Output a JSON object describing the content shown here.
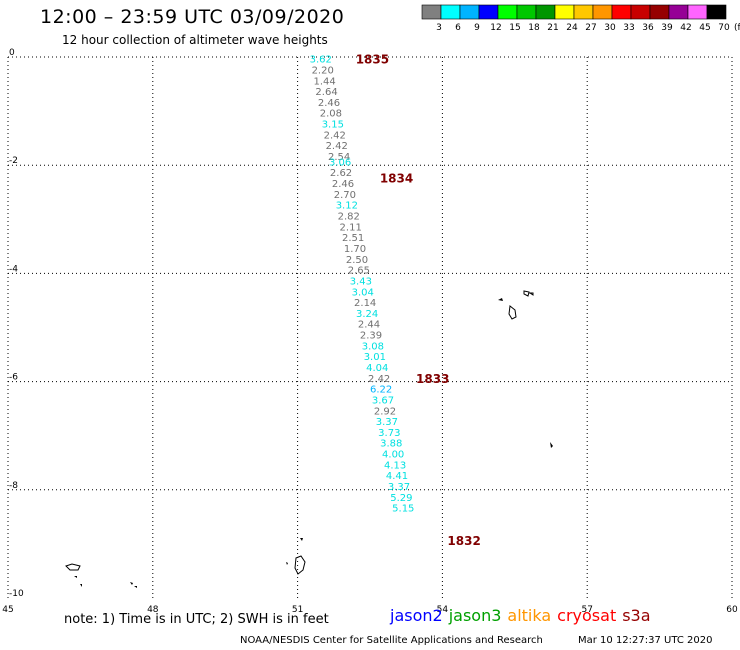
{
  "header": {
    "title": "12:00 – 23:59 UTC 03/09/2020",
    "subtitle": "12 hour collection of altimeter wave heights"
  },
  "legend": {
    "colors": [
      "#808080",
      "#00ffff",
      "#00b4ff",
      "#0000ff",
      "#00ff00",
      "#00c800",
      "#009600",
      "#ffff00",
      "#ffc800",
      "#ff9600",
      "#ff0000",
      "#c80000",
      "#960000",
      "#960096",
      "#ff64ff",
      "#000000"
    ],
    "labels": [
      "3",
      "6",
      "9",
      "12",
      "15",
      "18",
      "21",
      "24",
      "27",
      "30",
      "33",
      "36",
      "39",
      "42",
      "45",
      "70"
    ],
    "unit": "(ft)"
  },
  "axes": {
    "lon_ticks": [
      "45",
      "48",
      "51",
      "54",
      "57",
      "60"
    ],
    "lat_ticks": [
      "0",
      "-2",
      "-4",
      "-6",
      "-8",
      "-10"
    ],
    "lon_range": [
      45,
      60
    ],
    "lat_range": [
      -10,
      0
    ],
    "grid": true
  },
  "track": {
    "points": [
      {
        "lon": 51.48,
        "lat": -0.03,
        "v": "3.62",
        "c": "#00e0e0"
      },
      {
        "lon": 51.52,
        "lat": -0.23,
        "v": "2.20",
        "c": "#707070"
      },
      {
        "lon": 51.56,
        "lat": -0.43,
        "v": "1.44",
        "c": "#707070"
      },
      {
        "lon": 51.6,
        "lat": -0.63,
        "v": "2.64",
        "c": "#707070"
      },
      {
        "lon": 51.65,
        "lat": -0.83,
        "v": "2.46",
        "c": "#707070"
      },
      {
        "lon": 51.69,
        "lat": -1.03,
        "v": "2.08",
        "c": "#707070"
      },
      {
        "lon": 51.73,
        "lat": -1.23,
        "v": "3.15",
        "c": "#00e0e0"
      },
      {
        "lon": 51.77,
        "lat": -1.43,
        "v": "2.42",
        "c": "#707070"
      },
      {
        "lon": 51.81,
        "lat": -1.63,
        "v": "2.42",
        "c": "#707070"
      },
      {
        "lon": 51.86,
        "lat": -1.83,
        "v": "2.54",
        "c": "#707070"
      },
      {
        "lon": 51.88,
        "lat": -1.93,
        "v": "3.06",
        "c": "#00e0e0"
      },
      {
        "lon": 51.9,
        "lat": -2.13,
        "v": "2.62",
        "c": "#707070"
      },
      {
        "lon": 51.94,
        "lat": -2.33,
        "v": "2.46",
        "c": "#707070"
      },
      {
        "lon": 51.98,
        "lat": -2.53,
        "v": "2.70",
        "c": "#707070"
      },
      {
        "lon": 52.02,
        "lat": -2.73,
        "v": "3.12",
        "c": "#00e0e0"
      },
      {
        "lon": 52.06,
        "lat": -2.93,
        "v": "2.82",
        "c": "#707070"
      },
      {
        "lon": 52.1,
        "lat": -3.13,
        "v": "2.11",
        "c": "#707070"
      },
      {
        "lon": 52.15,
        "lat": -3.33,
        "v": "2.51",
        "c": "#707070"
      },
      {
        "lon": 52.19,
        "lat": -3.53,
        "v": "1.70",
        "c": "#707070"
      },
      {
        "lon": 52.23,
        "lat": -3.73,
        "v": "2.50",
        "c": "#707070"
      },
      {
        "lon": 52.27,
        "lat": -3.93,
        "v": "2.65",
        "c": "#707070"
      },
      {
        "lon": 52.31,
        "lat": -4.13,
        "v": "3.43",
        "c": "#00e0e0"
      },
      {
        "lon": 52.35,
        "lat": -4.33,
        "v": "3.04",
        "c": "#00e0e0"
      },
      {
        "lon": 52.4,
        "lat": -4.53,
        "v": "2.14",
        "c": "#707070"
      },
      {
        "lon": 52.44,
        "lat": -4.73,
        "v": "3.24",
        "c": "#00e0e0"
      },
      {
        "lon": 52.48,
        "lat": -4.93,
        "v": "2.44",
        "c": "#707070"
      },
      {
        "lon": 52.52,
        "lat": -5.13,
        "v": "2.39",
        "c": "#707070"
      },
      {
        "lon": 52.56,
        "lat": -5.33,
        "v": "3.08",
        "c": "#00e0e0"
      },
      {
        "lon": 52.6,
        "lat": -5.53,
        "v": "3.01",
        "c": "#00e0e0"
      },
      {
        "lon": 52.65,
        "lat": -5.73,
        "v": "4.04",
        "c": "#00e0e0"
      },
      {
        "lon": 52.69,
        "lat": -5.93,
        "v": "2.42",
        "c": "#707070"
      },
      {
        "lon": 52.73,
        "lat": -6.13,
        "v": "6.22",
        "c": "#00b4ff"
      },
      {
        "lon": 52.77,
        "lat": -6.33,
        "v": "3.67",
        "c": "#00e0e0"
      },
      {
        "lon": 52.81,
        "lat": -6.53,
        "v": "2.92",
        "c": "#707070"
      },
      {
        "lon": 52.85,
        "lat": -6.73,
        "v": "3.37",
        "c": "#00e0e0"
      },
      {
        "lon": 52.9,
        "lat": -6.93,
        "v": "3.73",
        "c": "#00e0e0"
      },
      {
        "lon": 52.94,
        "lat": -7.13,
        "v": "3.88",
        "c": "#00e0e0"
      },
      {
        "lon": 52.98,
        "lat": -7.33,
        "v": "4.00",
        "c": "#00e0e0"
      },
      {
        "lon": 53.02,
        "lat": -7.53,
        "v": "4.13",
        "c": "#00e0e0"
      },
      {
        "lon": 53.06,
        "lat": -7.73,
        "v": "4.41",
        "c": "#00e0e0"
      },
      {
        "lon": 53.1,
        "lat": -7.93,
        "v": "3.37",
        "c": "#00e0e0"
      },
      {
        "lon": 53.15,
        "lat": -8.13,
        "v": "5.29",
        "c": "#00e0e0"
      },
      {
        "lon": 53.19,
        "lat": -8.33,
        "v": "5.15",
        "c": "#00e0e0"
      }
    ],
    "passes": [
      {
        "lon": 52.55,
        "lat": -0.03,
        "label": "1835"
      },
      {
        "lon": 53.05,
        "lat": -2.23,
        "label": "1834"
      },
      {
        "lon": 53.8,
        "lat": -5.93,
        "label": "1833"
      },
      {
        "lon": 54.45,
        "lat": -8.93,
        "label": "1832"
      }
    ]
  },
  "footer": {
    "note": "note: 1) Time is in UTC; 2) SWH is in feet",
    "satellites": [
      {
        "name": "jason2",
        "color": "#0000ff"
      },
      {
        "name": "jason3",
        "color": "#00a000"
      },
      {
        "name": "altika",
        "color": "#ff9600"
      },
      {
        "name": "cryosat",
        "color": "#ff0000"
      },
      {
        "name": "s3a",
        "color": "#960000"
      }
    ],
    "credit": "NOAA/NESDIS Center for Satellite Applications and Research",
    "timestamp": "Mar 10 12:27:37 UTC 2020"
  }
}
